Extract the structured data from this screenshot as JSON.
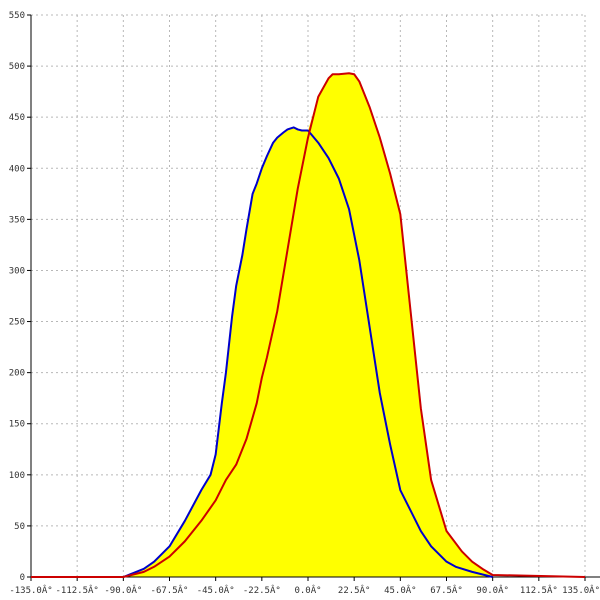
{
  "chart_data": {
    "type": "area",
    "title": "",
    "xlabel": "",
    "ylabel": "",
    "xlim": [
      -135,
      135
    ],
    "ylim": [
      0,
      550
    ],
    "x_ticks": [
      -135,
      -112.5,
      -90,
      -67.5,
      -45,
      -22.5,
      0,
      22.5,
      45,
      67.5,
      90,
      112.5,
      135
    ],
    "x_tick_labels": [
      "-135.0Â°",
      "-112.5Â°",
      "-90.0Â°",
      "-67.5Â°",
      "-45.0Â°",
      "-22.5Â°",
      "0.0Â°",
      "22.5Â°",
      "45.0Â°",
      "67.5Â°",
      "90.0Â°",
      "112.5Â°",
      "135.0Â°"
    ],
    "y_ticks": [
      0,
      50,
      100,
      150,
      200,
      250,
      300,
      350,
      400,
      450,
      500,
      550
    ],
    "y_tick_labels": [
      "0",
      "50",
      "100",
      "150",
      "200",
      "250",
      "300",
      "350",
      "400",
      "450",
      "500",
      "550"
    ],
    "grid": true,
    "fill_color": "#ffff00",
    "series": [
      {
        "color": "#0000cc",
        "x": [
          -90,
          -80,
          -75,
          -70,
          -67.5,
          -60,
          -52,
          -47.5,
          -45,
          -42,
          -40,
          -37,
          -35,
          -32,
          -30,
          -27,
          -25,
          -22.5,
          -20,
          -17,
          -15,
          -12,
          -10,
          -7,
          -5,
          -3,
          0,
          5,
          10,
          15,
          20,
          25,
          30,
          35,
          40,
          45,
          50,
          55,
          60,
          65,
          67.5,
          72,
          80,
          90
        ],
        "y": [
          0,
          8,
          15,
          25,
          30,
          55,
          85,
          100,
          120,
          170,
          200,
          255,
          285,
          315,
          340,
          375,
          385,
          400,
          412,
          425,
          430,
          435,
          438,
          440,
          438,
          437,
          437,
          425,
          410,
          390,
          360,
          310,
          245,
          180,
          130,
          85,
          65,
          45,
          30,
          20,
          15,
          10,
          5,
          0
        ]
      },
      {
        "color": "#cc0000",
        "x": [
          -135,
          -90,
          -80,
          -75,
          -67.5,
          -60,
          -52,
          -45,
          -40,
          -35,
          -30,
          -25,
          -22.5,
          -20,
          -15,
          -10,
          -5,
          0,
          5,
          10,
          12,
          15,
          20,
          22.5,
          25,
          30,
          35,
          40,
          45,
          50,
          55,
          60,
          67.5,
          75,
          80,
          85,
          90,
          135
        ],
        "y": [
          0,
          0,
          5,
          10,
          20,
          35,
          55,
          75,
          95,
          110,
          135,
          170,
          195,
          215,
          260,
          320,
          380,
          430,
          470,
          488,
          492,
          492,
          493,
          492,
          485,
          460,
          430,
          395,
          355,
          260,
          165,
          95,
          45,
          25,
          15,
          8,
          2,
          0
        ]
      }
    ]
  }
}
